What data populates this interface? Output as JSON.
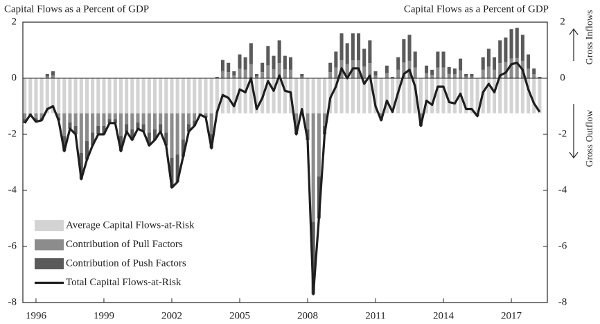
{
  "chart_data": {
    "type": "bar",
    "y_label": "Capital Flows as a Percent of GDP",
    "y2_label": "Capital Flows as a Percent of GDP",
    "annotations": [
      "Gross Inflows",
      "Gross Outflow"
    ],
    "x": [
      1995.5,
      1995.75,
      1996,
      1996.25,
      1996.5,
      1996.75,
      1997,
      1997.25,
      1997.5,
      1997.75,
      1998,
      1998.25,
      1998.5,
      1998.75,
      1999,
      1999.25,
      1999.5,
      1999.75,
      2000,
      2000.25,
      2000.5,
      2000.75,
      2001,
      2001.25,
      2001.5,
      2001.75,
      2002,
      2002.25,
      2002.5,
      2002.75,
      2003,
      2003.25,
      2003.5,
      2003.75,
      2004,
      2004.25,
      2004.5,
      2004.75,
      2005,
      2005.25,
      2005.5,
      2005.75,
      2006,
      2006.25,
      2006.5,
      2006.75,
      2007,
      2007.25,
      2007.5,
      2007.75,
      2008,
      2008.25,
      2008.5,
      2008.75,
      2009,
      2009.25,
      2009.5,
      2009.75,
      2010,
      2010.25,
      2010.5,
      2010.75,
      2011,
      2011.25,
      2011.5,
      2011.75,
      2012,
      2012.25,
      2012.5,
      2012.75,
      2013,
      2013.25,
      2013.5,
      2013.75,
      2014,
      2014.25,
      2014.5,
      2014.75,
      2015,
      2015.25,
      2015.5,
      2015.75,
      2016,
      2016.25,
      2016.5,
      2016.75,
      2017,
      2017.25,
      2017.5,
      2017.75,
      2018,
      2018.25
    ],
    "series": [
      {
        "name": "Average Capital Flows-at-Risk",
        "type": "bar",
        "color": "#d3d3d3",
        "values": [
          -1.25,
          -1.25,
          -1.25,
          -1.25,
          -1.25,
          -1.25,
          -1.25,
          -1.25,
          -1.25,
          -1.25,
          -1.25,
          -1.25,
          -1.25,
          -1.25,
          -1.25,
          -1.25,
          -1.25,
          -1.25,
          -1.25,
          -1.25,
          -1.25,
          -1.25,
          -1.25,
          -1.25,
          -1.25,
          -1.25,
          -1.25,
          -1.25,
          -1.25,
          -1.25,
          -1.25,
          -1.25,
          -1.25,
          -1.25,
          -1.25,
          -1.25,
          -1.25,
          -1.25,
          -1.25,
          -1.25,
          -1.25,
          -1.25,
          -1.25,
          -1.25,
          -1.25,
          -1.25,
          -1.25,
          -1.25,
          -1.25,
          -1.25,
          -1.25,
          -1.25,
          -1.25,
          -1.25,
          -1.25,
          -1.25,
          -1.25,
          -1.25,
          -1.25,
          -1.25,
          -1.25,
          -1.25,
          -1.25,
          -1.25,
          -1.25,
          -1.25,
          -1.25,
          -1.25,
          -1.25,
          -1.25,
          -1.25,
          -1.25,
          -1.25,
          -1.25,
          -1.25,
          -1.25,
          -1.25,
          -1.25,
          -1.25,
          -1.25,
          -1.25,
          -1.25,
          -1.25,
          -1.25,
          -1.25,
          -1.25,
          -1.25,
          -1.25,
          -1.25,
          -1.25,
          -1.25,
          -1.25
        ]
      },
      {
        "name": "Contribution of Pull Factors",
        "type": "bar",
        "color": "#8c8c8c",
        "values": [
          -0.21,
          -0.03,
          -0.18,
          -0.15,
          0.06,
          0.1,
          -0.15,
          -0.81,
          -0.33,
          -0.45,
          -1.41,
          -0.99,
          -0.69,
          -0.45,
          -0.45,
          -0.21,
          -0.21,
          -0.81,
          -0.39,
          -0.57,
          -0.33,
          -0.39,
          -0.69,
          -0.57,
          -0.39,
          -0.69,
          -1.59,
          -1.47,
          -0.93,
          -0.39,
          -0.27,
          -0.03,
          -0.09,
          -0.75,
          0.02,
          0.26,
          0.22,
          0.1,
          0.34,
          0.3,
          0.5,
          0.06,
          0.22,
          0.46,
          0.32,
          0.54,
          0.32,
          0.3,
          -0.45,
          0.06,
          -0.57,
          -3.87,
          -2.25,
          -0.45,
          0.22,
          0.38,
          0.64,
          0.5,
          0.64,
          0.64,
          0.42,
          0.54,
          0.1,
          -0.15,
          0.18,
          0.02,
          0.3,
          0.56,
          0.62,
          0.38,
          -0.27,
          0.18,
          0.12,
          0.38,
          0.38,
          0.16,
          0.14,
          0.28,
          0.06,
          0.06,
          -0.06,
          0.3,
          0.42,
          0.3,
          0.54,
          0.58,
          0.7,
          0.72,
          0.62,
          0.34,
          0.14,
          0.02
        ]
      },
      {
        "name": "Contribution of Push Factors",
        "type": "bar",
        "color": "#5a5a5a",
        "values": [
          -0.14,
          -0.02,
          -0.12,
          -0.1,
          0.09,
          0.15,
          -0.1,
          -0.54,
          -0.22,
          -0.3,
          -0.94,
          -0.66,
          -0.46,
          -0.3,
          -0.3,
          -0.14,
          -0.14,
          -0.54,
          -0.26,
          -0.38,
          -0.22,
          -0.26,
          -0.46,
          -0.38,
          -0.26,
          -0.46,
          -1.06,
          -0.98,
          -0.62,
          -0.26,
          -0.18,
          -0.02,
          -0.06,
          -0.5,
          0.03,
          0.39,
          0.33,
          0.15,
          0.51,
          0.45,
          0.75,
          0.09,
          0.33,
          0.69,
          0.48,
          0.81,
          0.48,
          0.45,
          -0.3,
          0.09,
          -0.38,
          -2.58,
          -1.5,
          -0.3,
          0.33,
          0.57,
          0.96,
          0.75,
          0.96,
          0.96,
          0.63,
          0.81,
          0.15,
          -0.1,
          0.27,
          0.03,
          0.45,
          0.84,
          0.93,
          0.57,
          -0.18,
          0.27,
          0.18,
          0.57,
          0.57,
          0.24,
          0.21,
          0.42,
          0.09,
          0.09,
          -0.04,
          0.45,
          0.63,
          0.45,
          0.81,
          0.87,
          1.05,
          1.08,
          0.93,
          0.51,
          0.21,
          0.03
        ]
      },
      {
        "name": "Total Capital Flows-at-Risk",
        "type": "line",
        "color": "#1e1e1e",
        "values": [
          -1.6,
          -1.3,
          -1.55,
          -1.5,
          -1.1,
          -1.0,
          -1.5,
          -2.6,
          -1.8,
          -2.0,
          -3.6,
          -2.9,
          -2.4,
          -2.0,
          -2.0,
          -1.6,
          -1.6,
          -2.6,
          -1.9,
          -2.2,
          -1.8,
          -1.9,
          -2.4,
          -2.2,
          -1.9,
          -2.4,
          -3.9,
          -3.7,
          -2.8,
          -1.9,
          -1.7,
          -1.3,
          -1.4,
          -2.5,
          -1.2,
          -0.6,
          -0.7,
          -1.0,
          -0.4,
          -0.5,
          0.0,
          -1.1,
          -0.7,
          -0.1,
          -0.45,
          0.1,
          -0.45,
          -0.5,
          -2.0,
          -1.1,
          -2.2,
          -7.7,
          -5.0,
          -2.0,
          -0.7,
          -0.3,
          0.35,
          0.0,
          0.35,
          0.35,
          -0.2,
          0.1,
          -1.0,
          -1.5,
          -0.8,
          -1.2,
          -0.5,
          0.15,
          0.3,
          -0.3,
          -1.7,
          -0.8,
          -0.95,
          -0.3,
          -0.3,
          -0.85,
          -0.9,
          -0.55,
          -1.1,
          -1.1,
          -1.35,
          -0.5,
          -0.2,
          -0.5,
          0.1,
          0.2,
          0.5,
          0.55,
          0.3,
          -0.4,
          -0.9,
          -1.2
        ]
      }
    ],
    "xlim": [
      1995.42,
      2018.59
    ],
    "xticks": [
      1996,
      1999,
      2002,
      2005,
      2008,
      2011,
      2014,
      2017
    ],
    "ylim": [
      -8,
      2
    ],
    "yticks": [
      -8,
      -6,
      -4,
      -2,
      0,
      2
    ],
    "y2lim": [
      -8,
      2
    ],
    "y2ticks": [
      -8,
      -6,
      -4,
      -2,
      0,
      2
    ]
  }
}
